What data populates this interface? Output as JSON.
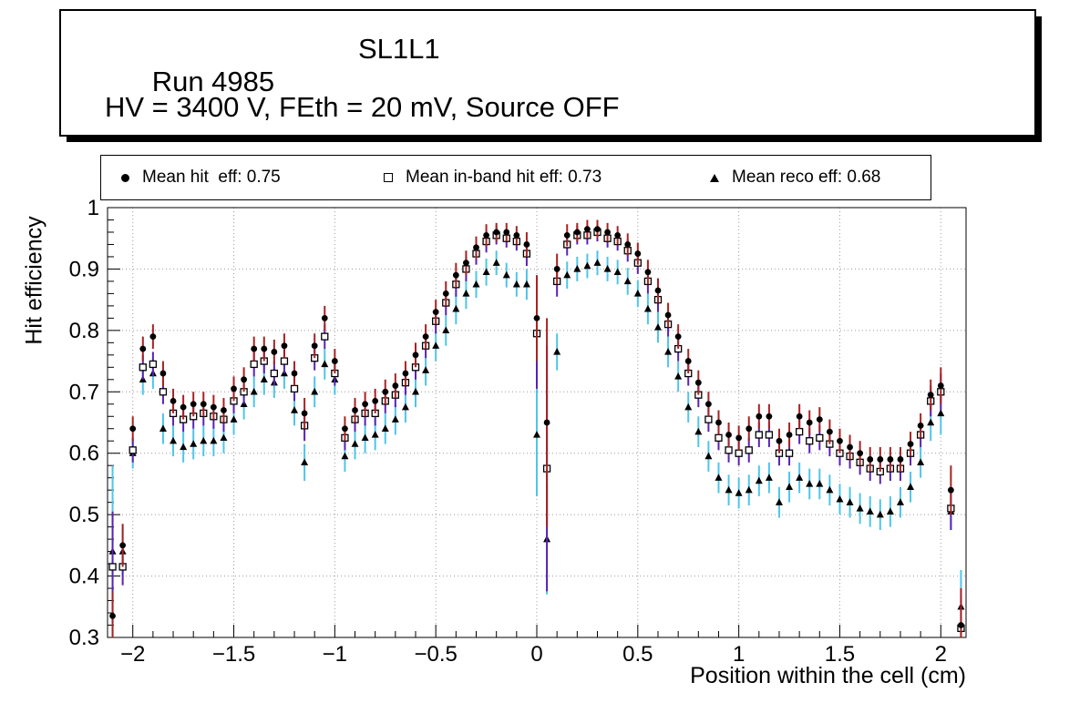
{
  "header": {
    "run": "Run 4985",
    "layer": "SL1L1",
    "conditions": "HV = 3400 V, FEth = 20 mV, Source OFF"
  },
  "legend": {
    "entries": [
      {
        "marker": "filled-circle",
        "label": "Mean hit  eff: 0.75"
      },
      {
        "marker": "open-square",
        "label": "Mean in-band hit eff: 0.73"
      },
      {
        "marker": "filled-triangle",
        "label": "Mean reco eff: 0.68"
      }
    ]
  },
  "chart_data": {
    "type": "scatter",
    "title": "",
    "xlabel": "Position within the cell (cm)",
    "ylabel": "Hit efficiency",
    "xlim": [
      -2.125,
      2.125
    ],
    "ylim": [
      0.3,
      1.0
    ],
    "xticks": [
      -2,
      -1.5,
      -1,
      -0.5,
      0,
      0.5,
      1,
      1.5,
      2
    ],
    "xtick_labels": [
      "−2",
      "−1.5",
      "−1",
      "−0.5",
      "0",
      "0.5",
      "1",
      "1.5",
      "2"
    ],
    "yticks": [
      0.3,
      0.4,
      0.5,
      0.6,
      0.7,
      0.8,
      0.9,
      1.0
    ],
    "ytick_labels": [
      "0.3",
      "0.4",
      "0.5",
      "0.6",
      "0.7",
      "0.8",
      "0.9",
      "1"
    ],
    "x_minor_step": 0.1,
    "y_minor_step": 0.02,
    "grid": "dotted",
    "legend_position": "top",
    "x": [
      -2.1,
      -2.05,
      -2,
      -1.95,
      -1.9,
      -1.85,
      -1.8,
      -1.75,
      -1.7,
      -1.65,
      -1.6,
      -1.55,
      -1.5,
      -1.45,
      -1.4,
      -1.35,
      -1.3,
      -1.25,
      -1.2,
      -1.15,
      -1.1,
      -1.05,
      -1,
      -0.95,
      -0.9,
      -0.85,
      -0.8,
      -0.75,
      -0.7,
      -0.65,
      -0.6,
      -0.55,
      -0.5,
      -0.45,
      -0.4,
      -0.35,
      -0.3,
      -0.25,
      -0.2,
      -0.15,
      -0.1,
      -0.05,
      0,
      0.05,
      0.1,
      0.15,
      0.2,
      0.25,
      0.3,
      0.35,
      0.4,
      0.45,
      0.5,
      0.55,
      0.6,
      0.65,
      0.7,
      0.75,
      0.8,
      0.85,
      0.9,
      0.95,
      1,
      1.05,
      1.1,
      1.15,
      1.2,
      1.25,
      1.3,
      1.35,
      1.4,
      1.45,
      1.5,
      1.55,
      1.6,
      1.65,
      1.7,
      1.75,
      1.8,
      1.85,
      1.9,
      1.95,
      2,
      2.05,
      2.1
    ],
    "series": [
      {
        "name": "Mean hit  eff: 0.75",
        "mean": 0.75,
        "marker": "filled-circle",
        "marker_color": "#000000",
        "error_color": "#a82222",
        "values": [
          0.335,
          0.45,
          0.64,
          0.77,
          0.79,
          0.73,
          0.685,
          0.675,
          0.68,
          0.68,
          0.675,
          0.67,
          0.705,
          0.72,
          0.77,
          0.77,
          0.765,
          0.775,
          0.73,
          0.665,
          0.775,
          0.82,
          0.75,
          0.64,
          0.67,
          0.68,
          0.685,
          0.7,
          0.71,
          0.73,
          0.76,
          0.79,
          0.83,
          0.86,
          0.89,
          0.91,
          0.935,
          0.955,
          0.96,
          0.96,
          0.955,
          0.94,
          0.82,
          0.65,
          0.9,
          0.955,
          0.96,
          0.965,
          0.965,
          0.96,
          0.955,
          0.94,
          0.925,
          0.895,
          0.865,
          0.825,
          0.79,
          0.75,
          0.715,
          0.68,
          0.65,
          0.63,
          0.625,
          0.64,
          0.66,
          0.66,
          0.62,
          0.63,
          0.66,
          0.65,
          0.655,
          0.635,
          0.62,
          0.61,
          0.6,
          0.59,
          0.59,
          0.59,
          0.59,
          0.615,
          0.645,
          0.695,
          0.71,
          0.54,
          0.32
        ],
        "errors": [
          0.04,
          0.035,
          0.02,
          0.02,
          0.02,
          0.02,
          0.02,
          0.02,
          0.02,
          0.02,
          0.02,
          0.02,
          0.02,
          0.02,
          0.02,
          0.02,
          0.02,
          0.02,
          0.02,
          0.025,
          0.02,
          0.02,
          0.02,
          0.02,
          0.02,
          0.02,
          0.02,
          0.02,
          0.02,
          0.02,
          0.02,
          0.02,
          0.02,
          0.02,
          0.02,
          0.02,
          0.018,
          0.018,
          0.015,
          0.015,
          0.015,
          0.02,
          0.07,
          0.17,
          0.025,
          0.018,
          0.015,
          0.015,
          0.015,
          0.015,
          0.015,
          0.018,
          0.018,
          0.02,
          0.02,
          0.02,
          0.02,
          0.02,
          0.02,
          0.02,
          0.02,
          0.02,
          0.02,
          0.02,
          0.02,
          0.02,
          0.02,
          0.02,
          0.02,
          0.02,
          0.02,
          0.02,
          0.02,
          0.02,
          0.02,
          0.02,
          0.02,
          0.02,
          0.02,
          0.02,
          0.02,
          0.025,
          0.03,
          0.04,
          0.06
        ]
      },
      {
        "name": "Mean in-band hit eff: 0.73",
        "mean": 0.73,
        "marker": "open-square",
        "marker_color": "#000000",
        "error_color": "#5b21b5",
        "values": [
          0.415,
          0.415,
          0.605,
          0.74,
          0.745,
          0.7,
          0.665,
          0.655,
          0.66,
          0.665,
          0.66,
          0.655,
          0.685,
          0.7,
          0.745,
          0.75,
          0.73,
          0.75,
          0.705,
          0.645,
          0.755,
          0.79,
          0.73,
          0.625,
          0.655,
          0.665,
          0.665,
          0.685,
          0.695,
          0.715,
          0.74,
          0.775,
          0.815,
          0.845,
          0.875,
          0.9,
          0.925,
          0.945,
          0.955,
          0.95,
          0.945,
          0.925,
          0.795,
          0.575,
          0.88,
          0.94,
          0.955,
          0.955,
          0.96,
          0.95,
          0.945,
          0.93,
          0.91,
          0.88,
          0.85,
          0.81,
          0.77,
          0.73,
          0.695,
          0.655,
          0.625,
          0.605,
          0.6,
          0.605,
          0.63,
          0.63,
          0.6,
          0.6,
          0.635,
          0.62,
          0.625,
          0.615,
          0.6,
          0.595,
          0.585,
          0.575,
          0.57,
          0.575,
          0.575,
          0.6,
          0.63,
          0.685,
          0.7,
          0.51,
          0.315
        ],
        "errors": [
          0.09,
          0.03,
          0.02,
          0.02,
          0.02,
          0.02,
          0.02,
          0.02,
          0.02,
          0.02,
          0.02,
          0.02,
          0.02,
          0.02,
          0.02,
          0.02,
          0.02,
          0.02,
          0.02,
          0.025,
          0.02,
          0.02,
          0.02,
          0.02,
          0.02,
          0.02,
          0.02,
          0.02,
          0.02,
          0.02,
          0.02,
          0.02,
          0.02,
          0.02,
          0.02,
          0.02,
          0.018,
          0.018,
          0.015,
          0.015,
          0.015,
          0.02,
          0.09,
          0.2,
          0.025,
          0.018,
          0.015,
          0.015,
          0.015,
          0.015,
          0.015,
          0.018,
          0.018,
          0.02,
          0.02,
          0.02,
          0.02,
          0.02,
          0.02,
          0.02,
          0.02,
          0.02,
          0.02,
          0.02,
          0.02,
          0.02,
          0.02,
          0.02,
          0.02,
          0.02,
          0.02,
          0.02,
          0.02,
          0.02,
          0.02,
          0.02,
          0.02,
          0.02,
          0.02,
          0.02,
          0.02,
          0.025,
          0.03,
          0.035,
          0.05
        ]
      },
      {
        "name": "Mean reco eff: 0.68",
        "mean": 0.68,
        "marker": "filled-triangle",
        "marker_color": "#000000",
        "error_color": "#4ec5ea",
        "values": [
          0.44,
          0.44,
          0.6,
          0.72,
          0.73,
          0.64,
          0.62,
          0.61,
          0.615,
          0.62,
          0.62,
          0.625,
          0.655,
          0.68,
          0.7,
          0.72,
          0.715,
          0.73,
          0.67,
          0.585,
          0.7,
          0.745,
          0.72,
          0.595,
          0.615,
          0.625,
          0.63,
          0.64,
          0.655,
          0.675,
          0.7,
          0.735,
          0.775,
          0.8,
          0.835,
          0.86,
          0.875,
          0.895,
          0.91,
          0.89,
          0.875,
          0.875,
          0.63,
          0.46,
          0.765,
          0.89,
          0.9,
          0.905,
          0.91,
          0.9,
          0.895,
          0.88,
          0.86,
          0.835,
          0.805,
          0.765,
          0.725,
          0.675,
          0.635,
          0.595,
          0.56,
          0.54,
          0.535,
          0.54,
          0.555,
          0.56,
          0.52,
          0.545,
          0.56,
          0.55,
          0.55,
          0.54,
          0.525,
          0.52,
          0.51,
          0.505,
          0.5,
          0.505,
          0.52,
          0.545,
          0.585,
          0.65,
          0.665,
          0.505,
          0.35
        ],
        "errors": [
          0.14,
          0.04,
          0.025,
          0.025,
          0.025,
          0.025,
          0.025,
          0.025,
          0.025,
          0.025,
          0.025,
          0.025,
          0.025,
          0.025,
          0.025,
          0.025,
          0.025,
          0.025,
          0.025,
          0.03,
          0.025,
          0.025,
          0.025,
          0.025,
          0.025,
          0.025,
          0.025,
          0.025,
          0.025,
          0.025,
          0.025,
          0.025,
          0.025,
          0.025,
          0.025,
          0.025,
          0.022,
          0.022,
          0.02,
          0.02,
          0.02,
          0.025,
          0.1,
          0.09,
          0.03,
          0.022,
          0.02,
          0.02,
          0.02,
          0.02,
          0.02,
          0.022,
          0.022,
          0.025,
          0.025,
          0.025,
          0.025,
          0.025,
          0.025,
          0.025,
          0.025,
          0.025,
          0.025,
          0.025,
          0.025,
          0.025,
          0.025,
          0.025,
          0.025,
          0.025,
          0.025,
          0.025,
          0.025,
          0.025,
          0.025,
          0.025,
          0.025,
          0.025,
          0.025,
          0.025,
          0.025,
          0.03,
          0.035,
          0.03,
          0.06
        ]
      }
    ]
  }
}
